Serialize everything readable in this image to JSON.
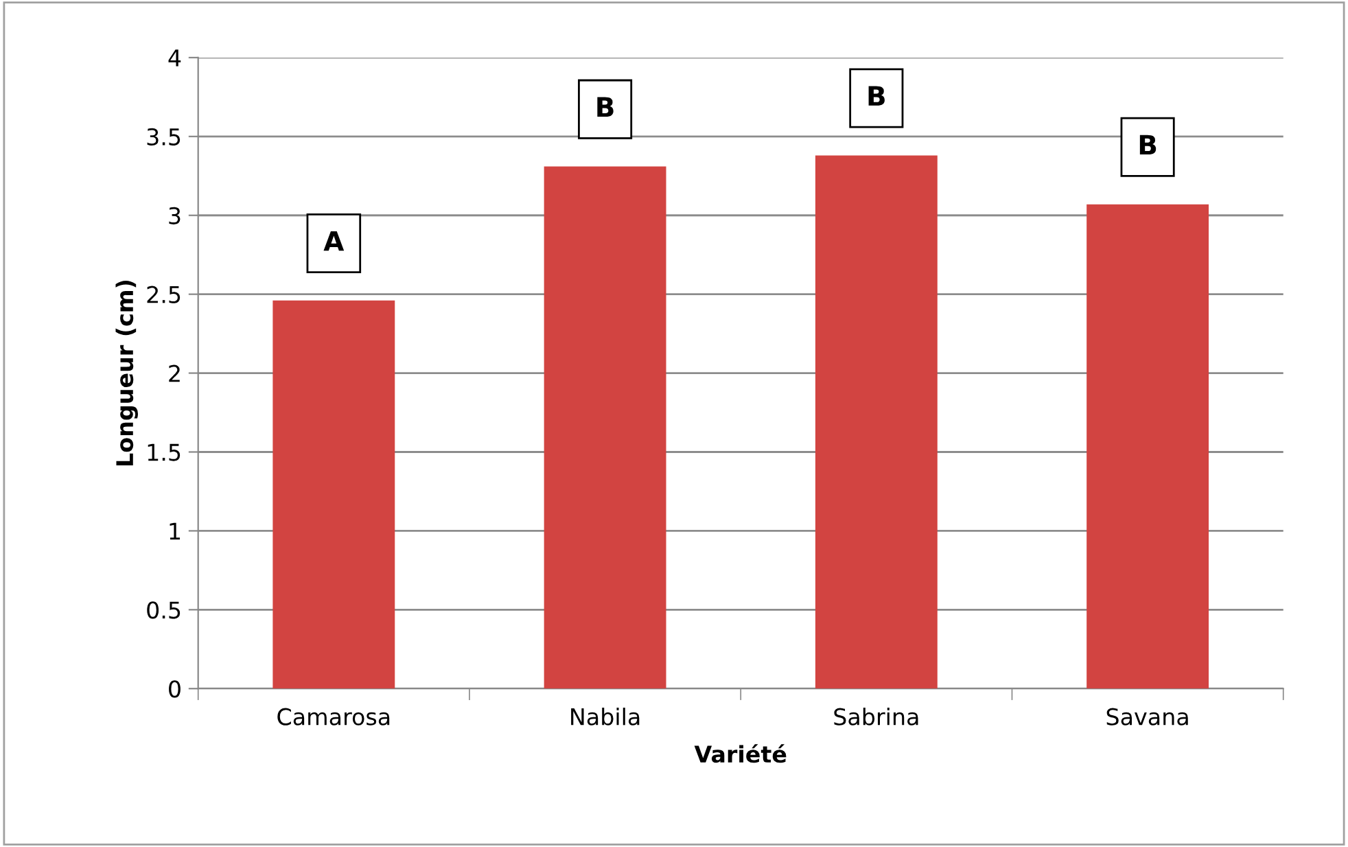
{
  "chart_data": {
    "type": "bar",
    "categories": [
      "Camarosa",
      "Nabila",
      "Sabrina",
      "Savana"
    ],
    "values": [
      2.46,
      3.31,
      3.38,
      3.07
    ],
    "color": "#d24441",
    "xlabel": "Variété",
    "ylabel": "Longueur (cm)",
    "ylim": [
      0,
      4
    ],
    "yticks": [
      0,
      0.5,
      1,
      1.5,
      2,
      2.5,
      3,
      3.5,
      4
    ],
    "grid": "y",
    "legend": false,
    "annotations": [
      {
        "text": "A",
        "x": "Camarosa",
        "y": 2.46
      },
      {
        "text": "B",
        "x": "Nabila",
        "y": 3.31
      },
      {
        "text": "B",
        "x": "Sabrina",
        "y": 3.38
      },
      {
        "text": "B",
        "x": "Savana",
        "y": 3.07
      }
    ]
  }
}
